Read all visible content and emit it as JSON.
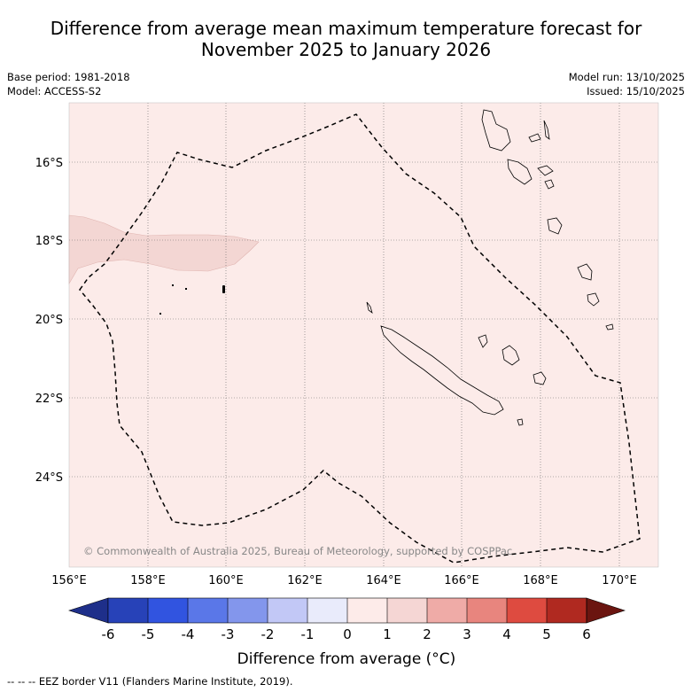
{
  "title_line1": "Difference from average mean maximum temperature forecast for",
  "title_line2": "November 2025 to January 2026",
  "base_period": "Base period: 1981-2018",
  "model": "Model: ACCESS-S2",
  "model_run": "Model run: 13/10/2025",
  "issued": "Issued: 15/10/2025",
  "copyright": "© Commonwealth of Australia 2025, Bureau of Meteorology, supported by COSPPac",
  "map": {
    "lon_range": [
      156,
      171
    ],
    "lat_range": [
      -14.5,
      -26.3
    ],
    "lon_ticks": [
      "156°E",
      "158°E",
      "160°E",
      "162°E",
      "164°E",
      "166°E",
      "168°E",
      "170°E"
    ],
    "lat_ticks": [
      "16°S",
      "18°S",
      "20°S",
      "22°S",
      "24°S"
    ],
    "background_category": "0 to 1",
    "anomaly_area_category": "1 to 2"
  },
  "colorbar": {
    "title": "Difference from average (°C)",
    "labels": [
      "-6",
      "-5",
      "-4",
      "-3",
      "-2",
      "-1",
      "0",
      "1",
      "2",
      "3",
      "4",
      "5",
      "6"
    ],
    "colors": [
      "#1e2f8a",
      "#2742b8",
      "#3154e0",
      "#5a77e8",
      "#8396ec",
      "#c2c8f6",
      "#e9ebfb",
      "#fdebe9",
      "#f5d6d4",
      "#efaba7",
      "#e8857e",
      "#de4b40",
      "#b02920",
      "#6b1510"
    ]
  },
  "footnote": "--  --  -- EEZ border V11 (Flanders Marine Institute, 2019)."
}
